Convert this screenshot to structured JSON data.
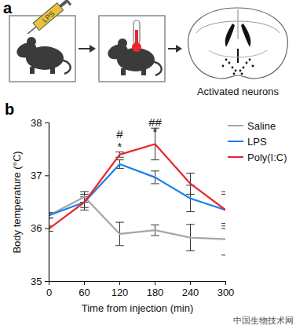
{
  "panel_a": {
    "label": "a",
    "syringe_label": "LPS",
    "caption": "Activated neurons"
  },
  "chart_data": {
    "type": "line",
    "panel_label": "b",
    "x_label": "Time from injection (min)",
    "y_label": "Body temperature (°C)",
    "x": [
      0,
      60,
      120,
      180,
      240,
      300
    ],
    "xlim": [
      0,
      300
    ],
    "xticks": [
      0,
      60,
      120,
      180,
      240,
      300
    ],
    "ylim": [
      35,
      38
    ],
    "yticks": [
      35,
      36,
      37,
      38
    ],
    "grid": false,
    "legend": "top-right",
    "series": [
      {
        "name": "Saline",
        "color": "#a6a6a6",
        "marker": "none",
        "line_style": "solid",
        "values": [
          36.25,
          36.6,
          35.9,
          35.97,
          35.83,
          35.8
        ],
        "errors": [
          0.05,
          0.1,
          0.22,
          0.1,
          0.25,
          0.3
        ]
      },
      {
        "name": "LPS",
        "color": "#1a7ff0",
        "marker": "none",
        "line_style": "solid",
        "values": [
          36.25,
          36.5,
          37.22,
          36.97,
          36.57,
          36.35
        ],
        "errors": [
          0.05,
          0.1,
          0.08,
          0.12,
          0.25,
          0.3
        ]
      },
      {
        "name": "Poly(I:C)",
        "color": "#e8262b",
        "marker": "none",
        "line_style": "solid",
        "values": [
          36.0,
          36.5,
          37.4,
          37.6,
          36.85,
          36.35
        ],
        "errors": [
          0.05,
          0.15,
          0.05,
          0.3,
          0.2,
          0.35
        ]
      }
    ],
    "annotations": [
      {
        "text": "#",
        "x": 120,
        "y": 37.78
      },
      {
        "text": "*",
        "x": 120,
        "y": 37.55
      },
      {
        "text": "##",
        "x": 180,
        "y": 38.0
      },
      {
        "text": "*",
        "x": 180,
        "y": 37.82
      }
    ]
  },
  "watermark": "中国生物技术网"
}
